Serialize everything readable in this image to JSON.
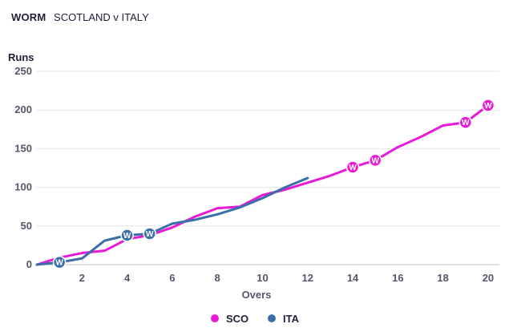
{
  "header": {
    "tag": "WORM",
    "title": "SCOTLAND v ITALY"
  },
  "chart_data": {
    "type": "line",
    "ylabel": "Runs",
    "xlabel": "Overs",
    "xlim": [
      0,
      20.5
    ],
    "ylim": [
      0,
      250
    ],
    "xticks": [
      "2",
      "4",
      "6",
      "8",
      "10",
      "12",
      "14",
      "16",
      "18",
      "20"
    ],
    "yticks": [
      "0",
      "50",
      "100",
      "150",
      "200",
      "250"
    ],
    "grid": "horizontal",
    "legend_position": "bottom",
    "series": [
      {
        "name": "SCO",
        "color": "#e81ad6",
        "x": [
          0,
          1,
          2,
          3,
          4,
          5,
          6,
          7,
          8,
          9,
          10,
          11,
          12,
          13,
          14,
          15,
          16,
          17,
          18,
          19,
          20
        ],
        "y": [
          0,
          9,
          15,
          18,
          33,
          38,
          48,
          62,
          73,
          75,
          90,
          97,
          106,
          115,
          126,
          135,
          152,
          165,
          180,
          184,
          206
        ],
        "wickets": [
          14,
          15,
          19,
          20
        ]
      },
      {
        "name": "ITA",
        "color": "#3c6ea8",
        "x": [
          0,
          1,
          2,
          3,
          4,
          5,
          6,
          7,
          8,
          9,
          10,
          11,
          12
        ],
        "y": [
          0,
          3,
          8,
          31,
          38,
          40,
          53,
          58,
          65,
          74,
          86,
          100,
          112
        ],
        "wickets": [
          1,
          4,
          5
        ]
      }
    ],
    "wicket_label": "W"
  }
}
